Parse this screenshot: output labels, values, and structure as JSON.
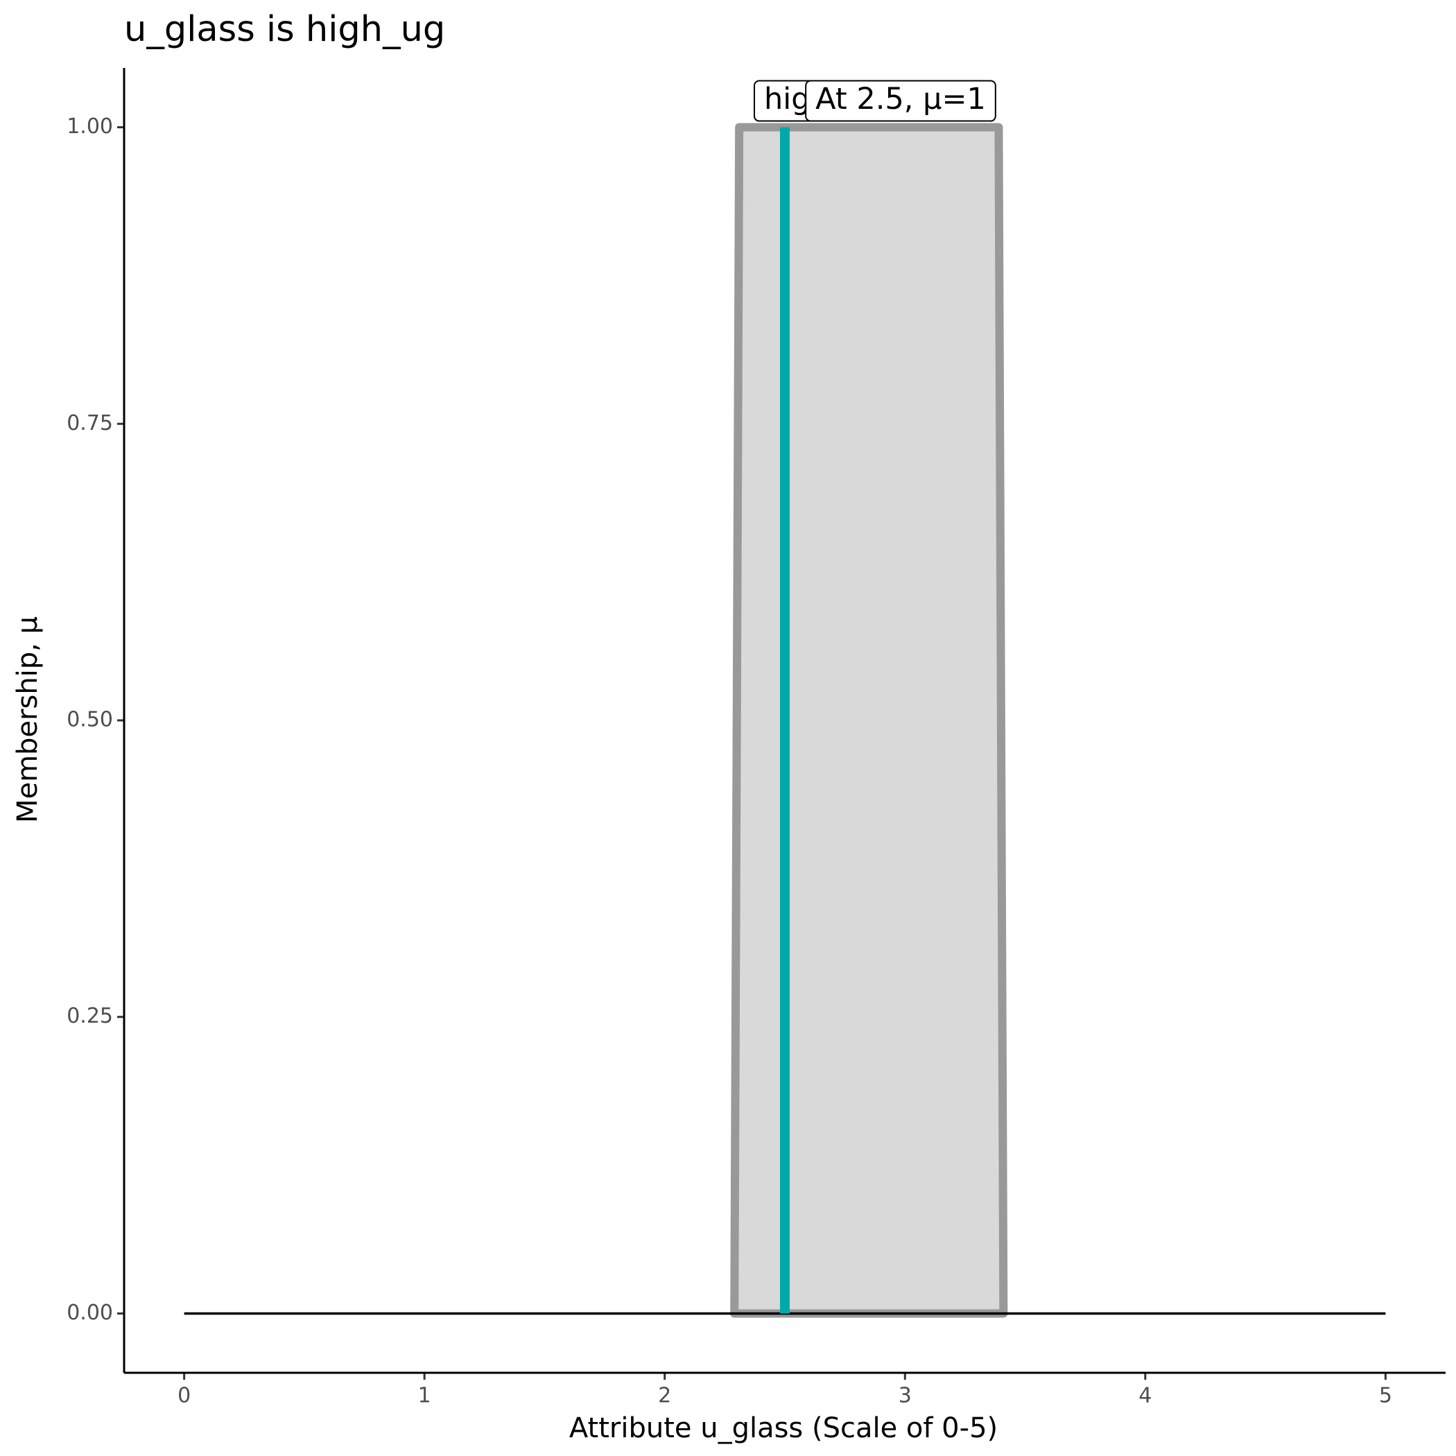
{
  "chart_data": {
    "type": "line",
    "title": "u_glass is high_ug",
    "x_label": "Attribute u_glass (Scale of 0-5)",
    "y_label": "Membership, μ",
    "xlim": [
      -0.25,
      5.25
    ],
    "ylim": [
      -0.05,
      1.05
    ],
    "xticks": [
      0,
      1,
      2,
      3,
      4,
      5
    ],
    "yticks": [
      {
        "value": 0,
        "label": "0.00"
      },
      {
        "value": 0.25,
        "label": "0.25"
      },
      {
        "value": 0.5,
        "label": "0.50"
      },
      {
        "value": 0.75,
        "label": "0.75"
      },
      {
        "value": 1,
        "label": "1.00"
      }
    ],
    "series": [
      {
        "color": "#999999",
        "fill": "#d9d9d9",
        "x": [
          2.29,
          2.31,
          3.39,
          3.41
        ],
        "values": [
          0,
          1,
          1,
          0
        ]
      },
      {
        "color": "#000000",
        "x": [
          0,
          5
        ],
        "values": [
          0,
          0
        ]
      },
      {
        "color": "#00aaaa",
        "x": [
          2.5,
          2.5
        ],
        "values": [
          0,
          1
        ]
      }
    ],
    "annotations": [
      {
        "text": "high_ug"
      },
      {
        "text": "At 2.5, μ=1"
      }
    ]
  }
}
